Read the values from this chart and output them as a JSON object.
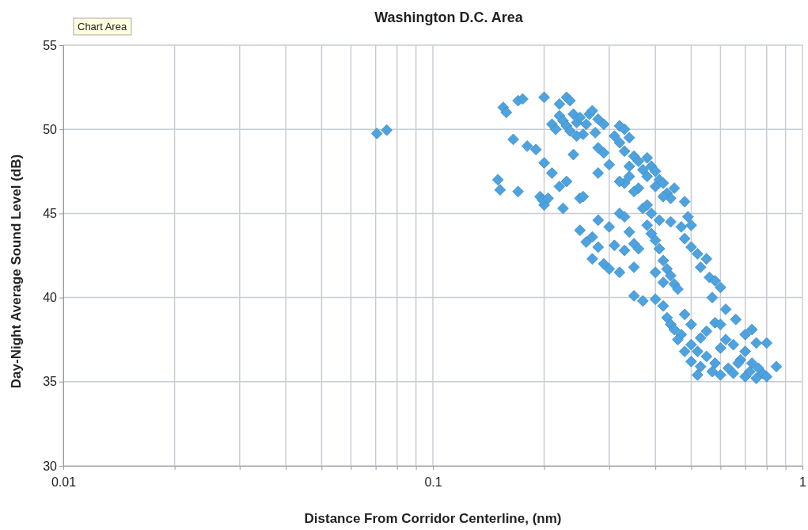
{
  "chart_data": {
    "type": "scatter",
    "title": "Washington D.C. Area",
    "xlabel": "Distance From Corridor Centerline, (nm)",
    "ylabel": "Day-Night Average Sound Level (dB)",
    "annotations": [
      "Chart Area"
    ],
    "log": "x",
    "grid": true,
    "marker": "diamond",
    "xlim": [
      0.01,
      1
    ],
    "ylim": [
      30,
      55
    ],
    "xticks": [
      0.01,
      {
        "value": 0.02,
        "label": null
      },
      {
        "value": 0.03,
        "label": null
      },
      {
        "value": 0.04,
        "label": null
      },
      {
        "value": 0.05,
        "label": null
      },
      {
        "value": 0.06,
        "label": null
      },
      {
        "value": 0.07,
        "label": null
      },
      {
        "value": 0.08,
        "label": null
      },
      {
        "value": 0.09,
        "label": null
      },
      0.1,
      {
        "value": 0.2,
        "label": null
      },
      {
        "value": 0.3,
        "label": null
      },
      {
        "value": 0.4,
        "label": null
      },
      {
        "value": 0.5,
        "label": null
      },
      {
        "value": 0.6,
        "label": null
      },
      {
        "value": 0.7,
        "label": null
      },
      {
        "value": 0.8,
        "label": null
      },
      {
        "value": 0.9,
        "label": null
      },
      1
    ],
    "yticks": [
      30,
      35,
      40,
      45,
      50,
      55
    ],
    "series": [
      {
        "color": "#4da3e0",
        "x": [
          0.0705,
          0.075,
          0.155,
          0.158,
          0.17,
          0.175,
          0.2,
          0.165,
          0.18,
          0.19,
          0.15,
          0.152,
          0.17,
          0.195,
          0.2,
          0.198,
          0.205,
          0.2,
          0.21,
          0.22,
          0.225,
          0.23,
          0.25,
          0.255,
          0.24,
          0.22,
          0.23,
          0.235,
          0.22,
          0.225,
          0.23,
          0.24,
          0.245,
          0.25,
          0.26,
          0.255,
          0.265,
          0.27,
          0.28,
          0.29,
          0.275,
          0.21,
          0.215,
          0.235,
          0.245,
          0.28,
          0.29,
          0.3,
          0.28,
          0.32,
          0.33,
          0.31,
          0.32,
          0.34,
          0.33,
          0.35,
          0.36,
          0.34,
          0.37,
          0.38,
          0.38,
          0.39,
          0.4,
          0.41,
          0.42,
          0.4,
          0.43,
          0.44,
          0.42,
          0.45,
          0.48,
          0.36,
          0.35,
          0.33,
          0.32,
          0.34,
          0.37,
          0.25,
          0.27,
          0.26,
          0.28,
          0.27,
          0.29,
          0.3,
          0.32,
          0.31,
          0.33,
          0.28,
          0.3,
          0.32,
          0.33,
          0.34,
          0.35,
          0.36,
          0.35,
          0.38,
          0.39,
          0.4,
          0.41,
          0.42,
          0.43,
          0.44,
          0.45,
          0.46,
          0.38,
          0.39,
          0.41,
          0.44,
          0.47,
          0.49,
          0.5,
          0.48,
          0.5,
          0.52,
          0.55,
          0.53,
          0.56,
          0.58,
          0.6,
          0.57,
          0.62,
          0.4,
          0.42,
          0.35,
          0.37,
          0.4,
          0.42,
          0.43,
          0.44,
          0.45,
          0.47,
          0.46,
          0.5,
          0.52,
          0.55,
          0.5,
          0.53,
          0.57,
          0.6,
          0.58,
          0.63,
          0.65,
          0.7,
          0.72,
          0.75,
          0.78,
          0.8,
          0.85,
          0.68,
          0.7,
          0.73,
          0.76,
          0.6,
          0.62,
          0.65,
          0.55,
          0.58,
          0.6,
          0.53,
          0.5,
          0.48,
          0.66,
          0.7,
          0.73,
          0.75,
          0.8,
          0.48,
          0.52,
          0.67
        ],
        "values": [
          49.75,
          49.95,
          51.3,
          51.0,
          51.7,
          51.8,
          51.9,
          49.4,
          49.0,
          48.8,
          47.0,
          46.4,
          46.3,
          46.0,
          45.5,
          45.8,
          45.9,
          48.0,
          47.4,
          46.6,
          45.3,
          46.9,
          45.9,
          46.0,
          48.5,
          51.5,
          51.9,
          51.7,
          50.8,
          50.5,
          50.2,
          50.9,
          50.4,
          50.7,
          50.3,
          49.7,
          50.9,
          51.1,
          50.6,
          50.3,
          49.8,
          50.3,
          50.0,
          49.9,
          49.6,
          48.9,
          48.6,
          47.9,
          47.4,
          50.2,
          50.0,
          49.6,
          49.2,
          49.5,
          48.7,
          48.4,
          48.1,
          47.8,
          47.6,
          48.3,
          47.2,
          47.8,
          47.5,
          47.0,
          46.8,
          46.6,
          46.2,
          45.9,
          46.0,
          46.5,
          45.7,
          46.5,
          46.3,
          46.8,
          46.9,
          47.2,
          45.3,
          44.0,
          43.6,
          43.3,
          43.0,
          42.3,
          42.0,
          41.7,
          41.5,
          43.1,
          42.8,
          44.6,
          44.2,
          45.0,
          44.8,
          43.9,
          43.2,
          42.9,
          41.8,
          44.3,
          43.8,
          43.4,
          42.9,
          42.2,
          41.7,
          41.3,
          40.8,
          40.5,
          45.5,
          45.0,
          44.6,
          44.5,
          44.2,
          44.8,
          44.3,
          43.5,
          43.0,
          42.6,
          42.3,
          41.8,
          41.2,
          41.0,
          40.6,
          40.0,
          39.3,
          41.5,
          40.9,
          40.1,
          39.8,
          39.9,
          39.5,
          38.8,
          38.4,
          38.1,
          37.8,
          37.5,
          37.2,
          36.8,
          36.5,
          36.2,
          35.9,
          35.6,
          35.4,
          36.1,
          35.8,
          35.5,
          35.3,
          35.6,
          35.2,
          35.5,
          35.3,
          35.9,
          36.3,
          36.8,
          36.1,
          35.8,
          37.0,
          37.5,
          37.2,
          38.0,
          38.5,
          38.4,
          37.6,
          38.4,
          39.0,
          38.7,
          37.8,
          38.1,
          37.3,
          37.3,
          36.8,
          35.4,
          36.1
        ]
      }
    ]
  }
}
